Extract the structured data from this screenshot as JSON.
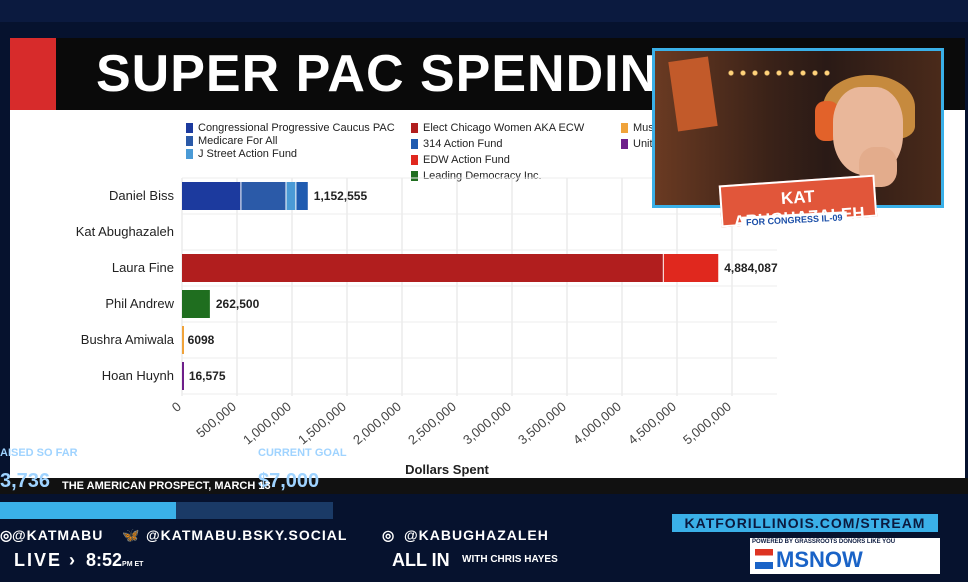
{
  "slide": {
    "title": "SUPER PAC SPENDING I"
  },
  "legend": [
    {
      "label": "Congressional Progressive Caucus PAC",
      "color": "#1c3a9e"
    },
    {
      "label": "Medicare For All",
      "color": "#2b5aa8"
    },
    {
      "label": "J Street Action Fund",
      "color": "#4a9ad6"
    },
    {
      "label": "Elect Chicago Women AKA ECW",
      "color": "#b11e1e"
    },
    {
      "label": "314 Action Fund",
      "color": "#1f5bb0"
    },
    {
      "label": "EDW Action Fund",
      "color": "#e0281e"
    },
    {
      "label": "Leading Democracy Inc.",
      "color": "#1f6e1f"
    },
    {
      "label": "Mus",
      "color": "#f0a33a"
    },
    {
      "label": "Unit",
      "color": "#6e1f8a"
    }
  ],
  "chart_data": {
    "type": "bar",
    "orientation": "horizontal",
    "stacked": true,
    "xlabel": "Dollars Spent",
    "xlim": [
      0,
      5000000
    ],
    "xticks": [
      "0",
      "500,000",
      "1,000,000",
      "1,500,000",
      "2,000,000",
      "2,500,000",
      "3,000,000",
      "3,500,000",
      "4,000,000",
      "4,500,000",
      "5,000,000"
    ],
    "categories": [
      "Daniel Biss",
      "Kat Abughazaleh",
      "Laura Fine",
      "Phil Andrew",
      "Bushra Amiwala",
      "Hoan Huynh"
    ],
    "totals": [
      "1,152,555",
      "",
      "4,884,087",
      "262,500",
      "6098",
      "16,575"
    ],
    "series": [
      {
        "name": "Congressional Progressive Caucus PAC",
        "color": "#1c3a9e",
        "values": [
          540000,
          0,
          0,
          0,
          0,
          0
        ]
      },
      {
        "name": "Medicare For All",
        "color": "#2b5aa8",
        "values": [
          410000,
          0,
          0,
          0,
          0,
          0
        ]
      },
      {
        "name": "J Street Action Fund",
        "color": "#4a9ad6",
        "values": [
          90000,
          0,
          0,
          0,
          0,
          0
        ]
      },
      {
        "name": "314 Action Fund",
        "color": "#1f5bb0",
        "values": [
          112555,
          0,
          0,
          0,
          0,
          0
        ]
      },
      {
        "name": "Elect Chicago Women AKA ECW",
        "color": "#b11e1e",
        "values": [
          0,
          0,
          4380000,
          0,
          0,
          0
        ]
      },
      {
        "name": "EDW Action Fund",
        "color": "#e0281e",
        "values": [
          0,
          0,
          504087,
          0,
          0,
          0
        ]
      },
      {
        "name": "Leading Democracy Inc.",
        "color": "#1f6e1f",
        "values": [
          0,
          0,
          0,
          262500,
          0,
          0
        ]
      },
      {
        "name": "Mus",
        "color": "#f0a33a",
        "values": [
          0,
          0,
          0,
          0,
          6098,
          0
        ]
      },
      {
        "name": "Unit",
        "color": "#6e1f8a",
        "values": [
          0,
          0,
          0,
          0,
          0,
          16575
        ]
      }
    ]
  },
  "webcam": {
    "name": "KAT ABUGHAZALEH",
    "subtitle": "FOR CONGRESS IL-09"
  },
  "overlay": {
    "raised_label": "AISED SO FAR",
    "raised_value": "3,736",
    "goal_label": "CURRENT GOAL",
    "goal_value": "$7,000",
    "source": "THE AMERICAN PROSPECT, MARCH 13",
    "progress_fraction": 0.53,
    "social_1": "@KATMABU",
    "social_2": "@KATMABU.BSKY.SOCIAL",
    "social_3": "@KABUGHAZALEH",
    "stream_url": "KATFORILLINOIS.COM/STREAM"
  },
  "broadcast": {
    "live": "LIVE",
    "time": "8:52",
    "time_suffix": "PM ET",
    "show": "ALL IN",
    "show_sub": "WITH CHRIS HAYES",
    "network_tag": "POWERED BY GRASSROOTS DONORS LIKE YOU",
    "network": "MSNOW"
  }
}
